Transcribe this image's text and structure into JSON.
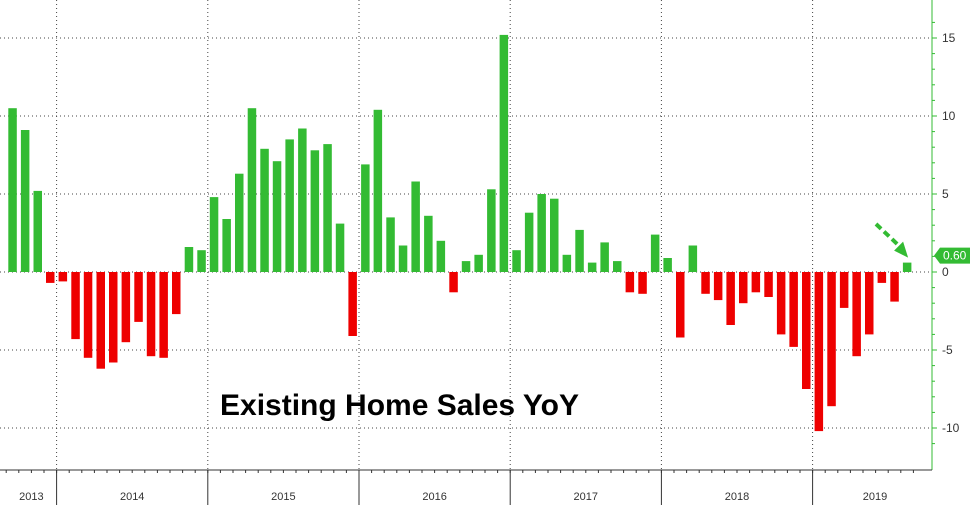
{
  "chart_data": {
    "type": "bar",
    "title": "Existing Home Sales YoY",
    "ylim": [
      -12,
      17
    ],
    "yticks": [
      15,
      10,
      5,
      0,
      -5,
      -10
    ],
    "year_labels": [
      "2013",
      "2014",
      "2015",
      "2016",
      "2017",
      "2018",
      "2019"
    ],
    "latest_value_label": "0.60",
    "colors": {
      "positive": "#33bb33",
      "negative": "#ee0000",
      "axis": "#33bb33",
      "callout": "#33bb33",
      "callout_text": "#ffffff"
    },
    "annotation": "arrow pointing at latest bar",
    "series": [
      {
        "values": [
          10.5,
          9.1,
          5.2,
          -0.7,
          -0.6,
          -4.3,
          -5.5,
          -6.2,
          -5.8,
          -4.5,
          -3.2,
          -5.4,
          -5.5,
          -2.7,
          1.6,
          1.4,
          4.8,
          3.4,
          6.3,
          10.5,
          7.9,
          7.1,
          8.5,
          9.2,
          7.8,
          8.2,
          3.1,
          -4.1,
          6.9,
          10.4,
          3.5,
          1.7,
          5.8,
          3.6,
          2.0,
          -1.3,
          0.7,
          1.1,
          5.3,
          15.2,
          1.4,
          3.8,
          5.0,
          4.7,
          1.1,
          2.7,
          0.6,
          1.9,
          0.7,
          -1.3,
          -1.4,
          2.4,
          0.9,
          -4.2,
          1.7,
          -1.4,
          -1.8,
          -3.4,
          -2.0,
          -1.3,
          -1.6,
          -4.0,
          -4.8,
          -7.5,
          -10.2,
          -8.6,
          -2.3,
          -5.4,
          -4.0,
          -0.7,
          -1.9,
          0.6
        ]
      }
    ]
  }
}
